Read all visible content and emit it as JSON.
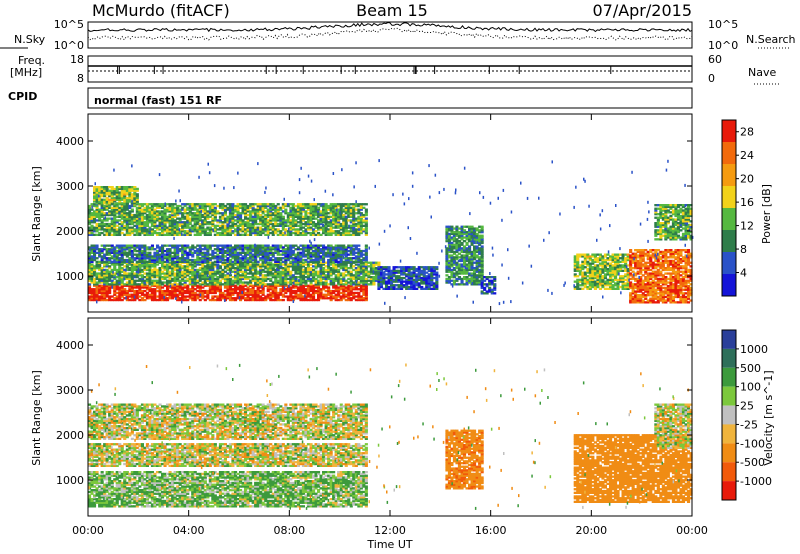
{
  "header": {
    "station": "McMurdo (fitACF)",
    "beam": "Beam 15",
    "date": "07/Apr/2015"
  },
  "noise_panel": {
    "left_label": "N.Sky",
    "right_label": "N.Search",
    "left_ticks": [
      "10^5",
      "10^0"
    ],
    "right_ticks": [
      "10^5",
      "10^0"
    ]
  },
  "freq_panel": {
    "left_label_1": "Freq.",
    "left_label_2": "[MHz]",
    "right_label": "Nave",
    "left_ticks": [
      "18",
      "8"
    ],
    "right_ticks": [
      "60",
      "0"
    ]
  },
  "cpid": {
    "label": "CPID",
    "value": "normal (fast) 151 RF"
  },
  "chart_data": [
    {
      "type": "heatmap",
      "name": "power",
      "ylabel": "Slant Range [km]",
      "ylim": [
        200,
        4600
      ],
      "yticks": [
        "1000",
        "2000",
        "3000",
        "4000"
      ],
      "ytick_values": [
        1000,
        2000,
        3000,
        4000
      ],
      "colorbar": {
        "label": "Power [dB]",
        "ticks": [
          "4",
          "8",
          "12",
          "16",
          "20",
          "24",
          "28"
        ],
        "range": [
          0,
          30
        ],
        "colors": [
          "#1414d8",
          "#2a52c8",
          "#2f7d4a",
          "#55b840",
          "#f2d21a",
          "#f59b10",
          "#f26a0c",
          "#e81a0a"
        ]
      },
      "blobs": [
        {
          "t": [
            0.0,
            11.0
          ],
          "r": [
            450,
            800
          ],
          "v": 28
        },
        {
          "t": [
            0.0,
            11.5
          ],
          "r": [
            800,
            1300
          ],
          "v": 12
        },
        {
          "t": [
            0.0,
            11.0
          ],
          "r": [
            1300,
            1700
          ],
          "v": 8
        },
        {
          "t": [
            0.0,
            11.0
          ],
          "r": [
            1900,
            2600
          ],
          "v": 12
        },
        {
          "t": [
            0.2,
            2.0
          ],
          "r": [
            2600,
            3000
          ],
          "v": 14
        },
        {
          "t": [
            11.5,
            13.8
          ],
          "r": [
            700,
            1200
          ],
          "v": 6
        },
        {
          "t": [
            14.2,
            15.6
          ],
          "r": [
            800,
            2100
          ],
          "v": 10
        },
        {
          "t": [
            15.6,
            16.2
          ],
          "r": [
            600,
            1000
          ],
          "v": 6
        },
        {
          "t": [
            19.3,
            21.5
          ],
          "r": [
            700,
            1500
          ],
          "v": 14
        },
        {
          "t": [
            21.5,
            24.0
          ],
          "r": [
            400,
            1600
          ],
          "v": 24
        },
        {
          "t": [
            22.5,
            24.0
          ],
          "r": [
            1800,
            2600
          ],
          "v": 12
        }
      ]
    },
    {
      "type": "heatmap",
      "name": "velocity",
      "xlabel": "Time UT",
      "ylabel": "Slant Range [km]",
      "ylim": [
        200,
        4600
      ],
      "yticks": [
        "1000",
        "2000",
        "3000",
        "4000"
      ],
      "ytick_values": [
        1000,
        2000,
        3000,
        4000
      ],
      "xticks": [
        "00:00",
        "04:00",
        "08:00",
        "12:00",
        "16:00",
        "20:00",
        "00:00"
      ],
      "xtick_hours": [
        0,
        4,
        8,
        12,
        16,
        20,
        24
      ],
      "colorbar": {
        "label": "Velocity [m s^-1]",
        "ticks": [
          "1000",
          "500",
          "100",
          "25",
          "-25",
          "-100",
          "-500",
          "-1000"
        ],
        "colors": [
          "#2a3f9a",
          "#2e6f5a",
          "#3c9a3c",
          "#7cc83c",
          "#c0c0c0",
          "#f0b43c",
          "#f08c14",
          "#f25a0a",
          "#e81a0a"
        ]
      },
      "blobs": [
        {
          "t": [
            0.0,
            11.0
          ],
          "r": [
            400,
            1200
          ],
          "v": 100
        },
        {
          "t": [
            0.0,
            11.0
          ],
          "r": [
            1300,
            1800
          ],
          "v": 0
        },
        {
          "t": [
            0.0,
            11.0
          ],
          "r": [
            1900,
            2700
          ],
          "v": 0
        },
        {
          "t": [
            14.2,
            15.6
          ],
          "r": [
            800,
            2100
          ],
          "v": -400
        },
        {
          "t": [
            19.3,
            24.0
          ],
          "r": [
            500,
            2000
          ],
          "v": -300
        },
        {
          "t": [
            22.5,
            24.0
          ],
          "r": [
            1700,
            2700
          ],
          "v": 0
        }
      ]
    }
  ]
}
